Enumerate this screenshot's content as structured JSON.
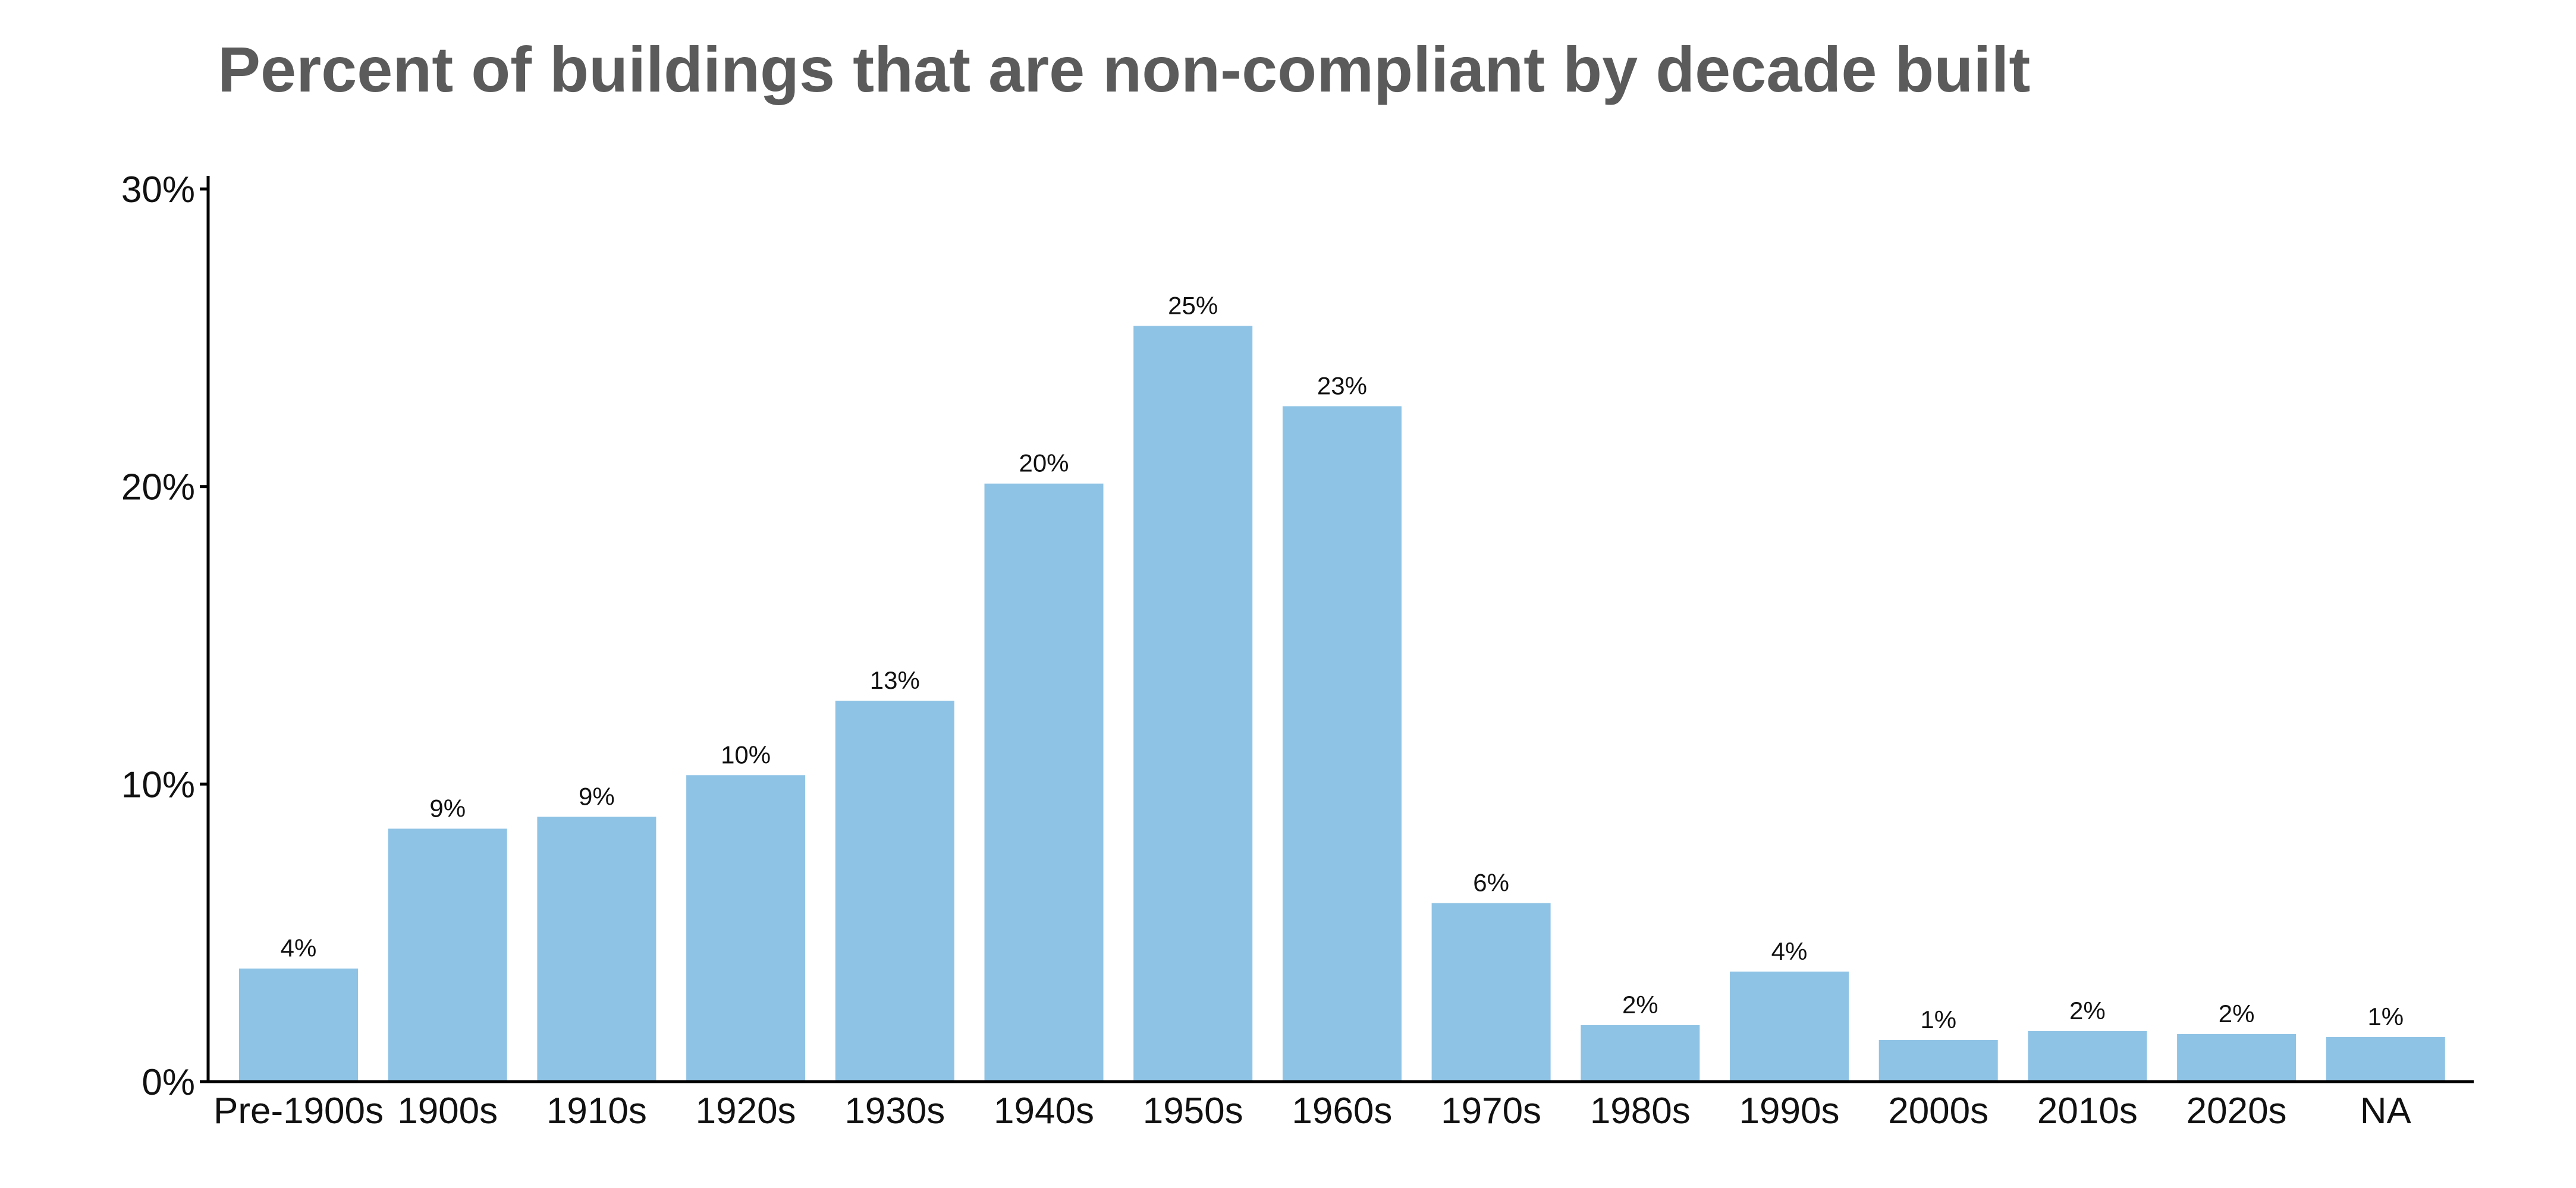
{
  "colors": {
    "bar": "#8fc3e5",
    "title": "#5b5b5b",
    "axis": "#000000",
    "text": "#111111",
    "background": "#ffffff"
  },
  "chart_data": {
    "type": "bar",
    "title": "Percent of buildings that are non-compliant by decade built",
    "xlabel": "",
    "ylabel": "",
    "ylim": [
      0,
      30
    ],
    "yticks": [
      0,
      10,
      20,
      30
    ],
    "ytick_labels": [
      "0%",
      "10%",
      "20%",
      "30%"
    ],
    "grid": false,
    "legend": "none",
    "categories": [
      "Pre-1900s",
      "1900s",
      "1910s",
      "1920s",
      "1930s",
      "1940s",
      "1950s",
      "1960s",
      "1970s",
      "1980s",
      "1990s",
      "2000s",
      "2010s",
      "2020s",
      "NA"
    ],
    "values": [
      3.8,
      8.5,
      8.9,
      10.3,
      12.8,
      20.1,
      25.4,
      22.7,
      6.0,
      1.9,
      3.7,
      1.4,
      1.7,
      1.6,
      1.5
    ],
    "value_labels": [
      "4%",
      "9%",
      "9%",
      "10%",
      "13%",
      "20%",
      "25%",
      "23%",
      "6%",
      "2%",
      "4%",
      "1%",
      "2%",
      "2%",
      "1%"
    ]
  }
}
